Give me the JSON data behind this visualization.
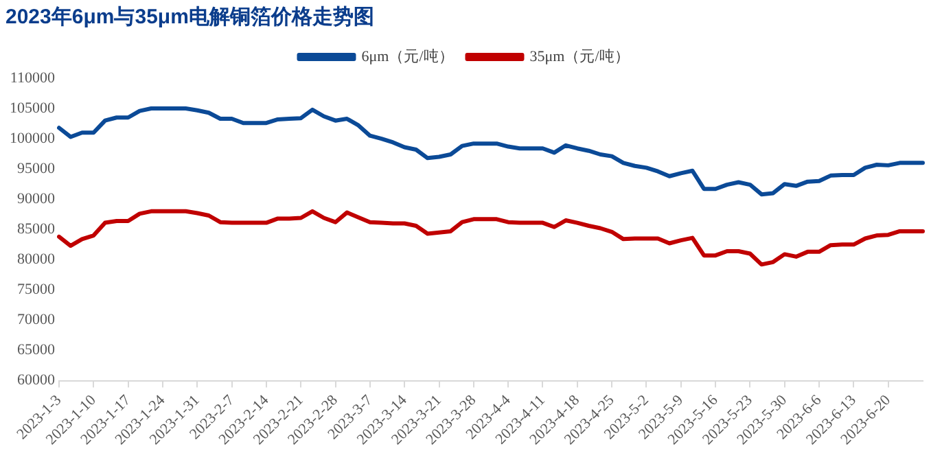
{
  "chart_data": {
    "type": "line",
    "title": "2023年6μm与35μm电解铜箔价格走势图",
    "categories": [
      "2023-1-3",
      null,
      null,
      "2023-1-10",
      null,
      null,
      "2023-1-17",
      null,
      null,
      "2023-1-24",
      null,
      null,
      "2023-1-31",
      null,
      null,
      "2023-2-7",
      null,
      null,
      "2023-2-14",
      null,
      null,
      "2023-2-21",
      null,
      null,
      "2023-2-28",
      null,
      null,
      "2023-3-7",
      null,
      null,
      "2023-3-14",
      null,
      null,
      "2023-3-21",
      null,
      null,
      "2023-3-28",
      null,
      null,
      "2023-4-4",
      null,
      null,
      "2023-4-11",
      null,
      null,
      "2023-4-18",
      null,
      null,
      "2023-4-25",
      null,
      null,
      "2023-5-2",
      null,
      null,
      "2023-5-9",
      null,
      null,
      "2023-5-16",
      null,
      null,
      "2023-5-23",
      null,
      null,
      "2023-5-30",
      null,
      null,
      "2023-6-6",
      null,
      null,
      "2023-6-13",
      null,
      null,
      "2023-6-20",
      null,
      null,
      null
    ],
    "series": [
      {
        "name": "6μm（元/吨）",
        "color": "#0b4a97",
        "values": [
          101800,
          100300,
          101000,
          101000,
          103000,
          103500,
          103500,
          104600,
          105000,
          105000,
          105000,
          105000,
          104700,
          104300,
          103300,
          103300,
          102600,
          102600,
          102600,
          103200,
          103300,
          103400,
          104800,
          103700,
          103000,
          103300,
          102200,
          100500,
          100000,
          99400,
          98600,
          98200,
          96800,
          97000,
          97400,
          98800,
          99200,
          99200,
          99200,
          98700,
          98400,
          98400,
          98400,
          97700,
          98900,
          98400,
          98000,
          97400,
          97100,
          96000,
          95500,
          95200,
          94600,
          93800,
          94300,
          94700,
          91700,
          91700,
          92400,
          92800,
          92400,
          90800,
          91000,
          92500,
          92200,
          92900,
          93000,
          93900,
          94000,
          94000,
          95200,
          95700,
          95600,
          96000,
          96000,
          96000
        ]
      },
      {
        "name": "35μm（元/吨）",
        "color": "#c00000",
        "values": [
          83800,
          82300,
          83400,
          84000,
          86100,
          86400,
          86400,
          87600,
          88000,
          88000,
          88000,
          88000,
          87700,
          87300,
          86200,
          86100,
          86100,
          86100,
          86100,
          86800,
          86800,
          86900,
          88000,
          86900,
          86200,
          87800,
          87000,
          86200,
          86100,
          86000,
          86000,
          85600,
          84300,
          84500,
          84700,
          86200,
          86700,
          86700,
          86700,
          86200,
          86100,
          86100,
          86100,
          85400,
          86500,
          86100,
          85600,
          85200,
          84600,
          83400,
          83500,
          83500,
          83500,
          82700,
          83200,
          83600,
          80700,
          80700,
          81400,
          81400,
          81000,
          79200,
          79600,
          80900,
          80500,
          81300,
          81300,
          82400,
          82500,
          82500,
          83500,
          84000,
          84100,
          84700,
          84700,
          84700
        ]
      }
    ],
    "ylim": [
      60000,
      110000
    ],
    "yticks": [
      60000,
      65000,
      70000,
      75000,
      80000,
      85000,
      90000,
      95000,
      100000,
      105000,
      110000
    ],
    "grid": false,
    "legend": "top",
    "marker": "none",
    "line_style": "solid"
  }
}
